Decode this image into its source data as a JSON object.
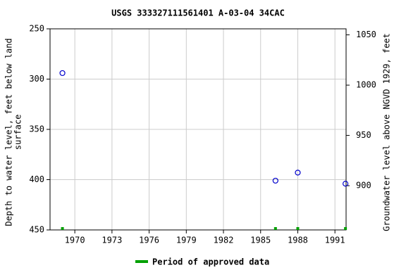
{
  "chart_data": {
    "type": "scatter",
    "title": "USGS 333327111561401 A-03-04 34CAC",
    "ylabel": [
      "Depth to water level, feet below land",
      "surface"
    ],
    "y2label": "Groundwater level above NGVD 1929, feet",
    "xlim": [
      1968.0,
      1991.9
    ],
    "xticks": [
      1970,
      1973,
      1976,
      1979,
      1982,
      1985,
      1988,
      1991
    ],
    "ylim": [
      250,
      450
    ],
    "yticks": [
      250,
      300,
      350,
      400,
      450
    ],
    "y2lim": [
      1056,
      856
    ],
    "y2ticks": [
      900,
      950,
      1000,
      1050
    ],
    "grid": true,
    "series": [
      {
        "name": "Depth to water level",
        "color": "#0000cc",
        "x": [
          1969.0,
          1986.2,
          1988.0,
          1991.85
        ],
        "values": [
          294,
          401,
          393,
          404
        ]
      }
    ],
    "approved": {
      "name": "Period of approved data",
      "color": "#00a000",
      "x": [
        1969.0,
        1986.2,
        1988.0,
        1991.85
      ]
    }
  }
}
